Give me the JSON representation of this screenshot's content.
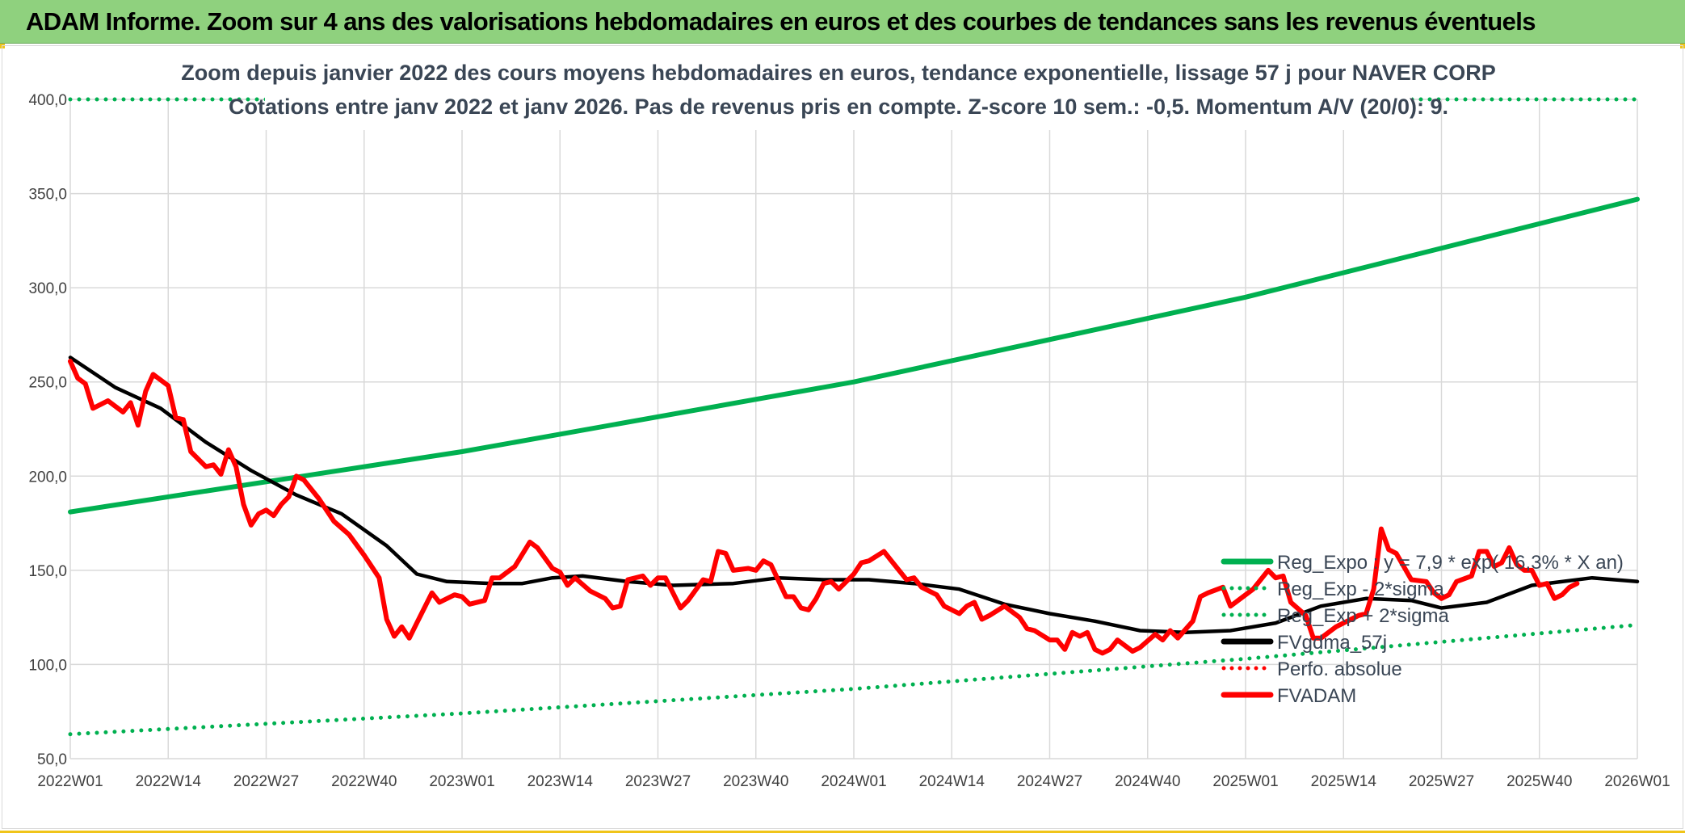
{
  "header": {
    "title": "ADAM Informe. Zoom sur 4 ans des valorisations hebdomadaires en euros et des courbes de tendances sans les revenus éventuels"
  },
  "colors": {
    "banner": "#8fd17e",
    "reg_expo": "#00b050",
    "fvgdma": "#000000",
    "fvadam": "#ff0000",
    "perfo": "#ff0000",
    "grid": "#d9d9d9"
  },
  "chart_data": {
    "type": "line",
    "title_lines": [
      "Zoom depuis janvier 2022 des cours moyens hebdomadaires en euros, tendance exponentielle, lissage 57 j pour NAVER CORP",
      "Cotations entre janv 2022 et janv 2026. Pas de revenus pris en compte. Z-score 10 sem.: -0,5. Momentum A/V (20/0): 9."
    ],
    "xlabel": "",
    "ylabel": "",
    "ylim": [
      50,
      400
    ],
    "y_ticks": [
      "50,0",
      "100,0",
      "150,0",
      "200,0",
      "250,0",
      "300,0",
      "350,0",
      "400,0"
    ],
    "x_ticks": [
      "2022W01",
      "2022W14",
      "2022W27",
      "2022W40",
      "2023W01",
      "2023W14",
      "2023W27",
      "2023W40",
      "2024W01",
      "2024W14",
      "2024W27",
      "2024W40",
      "2025W01",
      "2025W14",
      "2025W27",
      "2025W40",
      "2026W01"
    ],
    "x_range_weeks": [
      0,
      208
    ],
    "legend_position": "bottom-right",
    "series": [
      {
        "name": "Reg_Expo : y = 7,9 * exp( 16,3% * X  an)",
        "style": "solid",
        "color": "#00b050",
        "points": [
          [
            0,
            181
          ],
          [
            52,
            213
          ],
          [
            104,
            250
          ],
          [
            156,
            295
          ],
          [
            208,
            347
          ]
        ]
      },
      {
        "name": "Reg_Exp - 2*sigma",
        "style": "dotted",
        "color": "#00b050",
        "points": [
          [
            0,
            63
          ],
          [
            52,
            74
          ],
          [
            104,
            87
          ],
          [
            156,
            103
          ],
          [
            208,
            121
          ]
        ]
      },
      {
        "name": "Reg_Exp + 2*sigma",
        "style": "dotted",
        "color": "#00b050",
        "points": [
          [
            0,
            400
          ],
          [
            208,
            400
          ]
        ]
      },
      {
        "name": "FVgdma_57j",
        "style": "solid",
        "color": "#000000",
        "points": [
          [
            0,
            263
          ],
          [
            6,
            247
          ],
          [
            12,
            236
          ],
          [
            18,
            218
          ],
          [
            24,
            203
          ],
          [
            30,
            190
          ],
          [
            36,
            180
          ],
          [
            42,
            163
          ],
          [
            46,
            148
          ],
          [
            50,
            144
          ],
          [
            56,
            143
          ],
          [
            60,
            143
          ],
          [
            64,
            146
          ],
          [
            68,
            147
          ],
          [
            74,
            144
          ],
          [
            80,
            142
          ],
          [
            88,
            143
          ],
          [
            94,
            146
          ],
          [
            100,
            145
          ],
          [
            106,
            145
          ],
          [
            112,
            143
          ],
          [
            118,
            140
          ],
          [
            124,
            132
          ],
          [
            130,
            127
          ],
          [
            136,
            123
          ],
          [
            142,
            118
          ],
          [
            148,
            117
          ],
          [
            154,
            118
          ],
          [
            160,
            122
          ],
          [
            166,
            131
          ],
          [
            172,
            135
          ],
          [
            178,
            134
          ],
          [
            182,
            130
          ],
          [
            188,
            133
          ],
          [
            194,
            142
          ],
          [
            202,
            146
          ],
          [
            208,
            144
          ]
        ]
      },
      {
        "name": "Perfo. absolue",
        "style": "dotted",
        "color": "#ff0000",
        "points": []
      },
      {
        "name": "FVADAM",
        "style": "solid",
        "color": "#ff0000",
        "points": [
          [
            0,
            261
          ],
          [
            1,
            252
          ],
          [
            2,
            249
          ],
          [
            3,
            236
          ],
          [
            5,
            240
          ],
          [
            7,
            234
          ],
          [
            8,
            239
          ],
          [
            9,
            227
          ],
          [
            10,
            245
          ],
          [
            11,
            254
          ],
          [
            13,
            248
          ],
          [
            14,
            231
          ],
          [
            15,
            230
          ],
          [
            16,
            213
          ],
          [
            18,
            205
          ],
          [
            19,
            206
          ],
          [
            20,
            201
          ],
          [
            21,
            214
          ],
          [
            22,
            205
          ],
          [
            23,
            185
          ],
          [
            24,
            174
          ],
          [
            25,
            180
          ],
          [
            26,
            182
          ],
          [
            27,
            179
          ],
          [
            28,
            185
          ],
          [
            29,
            189
          ],
          [
            30,
            200
          ],
          [
            31,
            198
          ],
          [
            33,
            188
          ],
          [
            35,
            176
          ],
          [
            37,
            169
          ],
          [
            39,
            158
          ],
          [
            41,
            146
          ],
          [
            42,
            124
          ],
          [
            43,
            115
          ],
          [
            44,
            120
          ],
          [
            45,
            114
          ],
          [
            46,
            122
          ],
          [
            48,
            138
          ],
          [
            49,
            133
          ],
          [
            51,
            137
          ],
          [
            52,
            136
          ],
          [
            53,
            132
          ],
          [
            55,
            134
          ],
          [
            56,
            146
          ],
          [
            57,
            146
          ],
          [
            59,
            152
          ],
          [
            61,
            165
          ],
          [
            62,
            162
          ],
          [
            64,
            151
          ],
          [
            65,
            149
          ],
          [
            66,
            142
          ],
          [
            67,
            146
          ],
          [
            69,
            139
          ],
          [
            71,
            135
          ],
          [
            72,
            130
          ],
          [
            73,
            131
          ],
          [
            74,
            145
          ],
          [
            76,
            147
          ],
          [
            77,
            142
          ],
          [
            78,
            146
          ],
          [
            79,
            146
          ],
          [
            81,
            130
          ],
          [
            82,
            134
          ],
          [
            84,
            145
          ],
          [
            85,
            144
          ],
          [
            86,
            160
          ],
          [
            87,
            159
          ],
          [
            88,
            150
          ],
          [
            90,
            151
          ],
          [
            91,
            150
          ],
          [
            92,
            155
          ],
          [
            93,
            153
          ],
          [
            95,
            136
          ],
          [
            96,
            136
          ],
          [
            97,
            130
          ],
          [
            98,
            129
          ],
          [
            99,
            135
          ],
          [
            100,
            143
          ],
          [
            101,
            144
          ],
          [
            102,
            140
          ],
          [
            104,
            148
          ],
          [
            105,
            154
          ],
          [
            106,
            155
          ],
          [
            108,
            160
          ],
          [
            109,
            155
          ],
          [
            111,
            145
          ],
          [
            112,
            146
          ],
          [
            113,
            141
          ],
          [
            115,
            137
          ],
          [
            116,
            131
          ],
          [
            118,
            127
          ],
          [
            119,
            131
          ],
          [
            120,
            133
          ],
          [
            121,
            124
          ],
          [
            122,
            126
          ],
          [
            124,
            131
          ],
          [
            126,
            125
          ],
          [
            127,
            119
          ],
          [
            128,
            118
          ],
          [
            130,
            113
          ],
          [
            131,
            113
          ],
          [
            132,
            108
          ],
          [
            133,
            117
          ],
          [
            134,
            115
          ],
          [
            135,
            117
          ],
          [
            136,
            108
          ],
          [
            137,
            106
          ],
          [
            138,
            108
          ],
          [
            139,
            113
          ],
          [
            141,
            107
          ],
          [
            142,
            109
          ],
          [
            144,
            116
          ],
          [
            145,
            113
          ],
          [
            146,
            118
          ],
          [
            147,
            114
          ],
          [
            149,
            123
          ],
          [
            150,
            136
          ],
          [
            151,
            138
          ],
          [
            153,
            141
          ],
          [
            154,
            131
          ],
          [
            155,
            134
          ],
          [
            157,
            140
          ],
          [
            159,
            150
          ],
          [
            160,
            146
          ],
          [
            161,
            147
          ],
          [
            162,
            133
          ],
          [
            164,
            126
          ],
          [
            165,
            114
          ],
          [
            166,
            114
          ],
          [
            168,
            120
          ],
          [
            169,
            122
          ],
          [
            171,
            126
          ],
          [
            172,
            127
          ],
          [
            173,
            140
          ],
          [
            174,
            172
          ],
          [
            175,
            161
          ],
          [
            176,
            159
          ],
          [
            177,
            152
          ],
          [
            178,
            145
          ],
          [
            180,
            144
          ],
          [
            181,
            138
          ],
          [
            182,
            135
          ],
          [
            183,
            137
          ],
          [
            184,
            144
          ],
          [
            186,
            147
          ],
          [
            187,
            160
          ],
          [
            188,
            160
          ],
          [
            189,
            152
          ],
          [
            190,
            154
          ],
          [
            191,
            162
          ],
          [
            192,
            153
          ],
          [
            193,
            150
          ],
          [
            194,
            150
          ],
          [
            195,
            142
          ],
          [
            196,
            143
          ],
          [
            197,
            135
          ],
          [
            198,
            137
          ],
          [
            199,
            141
          ],
          [
            200,
            143
          ]
        ]
      }
    ]
  }
}
